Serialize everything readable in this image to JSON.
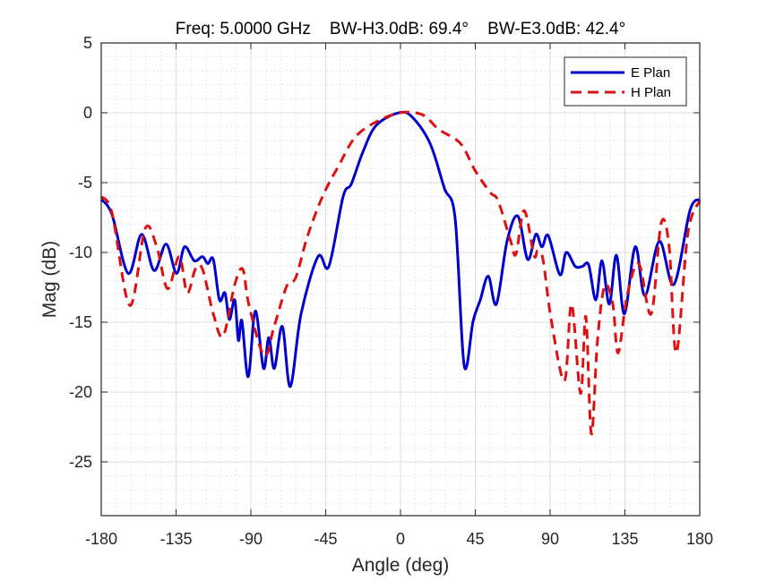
{
  "chart_data": {
    "type": "line",
    "title": "Freq: 5.0000 GHz    BW-H3.0dB: 69.4°    BW-E3.0dB: 42.4°",
    "xlabel": "Angle (deg)",
    "ylabel": "Mag (dB)",
    "xlim": [
      -180,
      180
    ],
    "ylim": [
      -28.85,
      5
    ],
    "xticks": [
      -180,
      -135,
      -90,
      -45,
      0,
      45,
      90,
      135,
      180
    ],
    "xtick_labels": [
      "-180",
      "-135",
      "-90",
      "-45",
      "0",
      "45",
      "90",
      "135",
      "180"
    ],
    "yticks": [
      5,
      0,
      -5,
      -10,
      -15,
      -20,
      -25
    ],
    "ytick_labels": [
      "5",
      "0",
      "-5",
      "-10",
      "-15",
      "-20",
      "-25"
    ],
    "grid": "major+minor",
    "legend_position": "top-right",
    "series": [
      {
        "name": "E Plan",
        "color": "#0000cc",
        "style": "solid",
        "x": [
          -180,
          -173.5,
          -163.8,
          -155.7,
          -148.2,
          -141,
          -134.7,
          -129.9,
          -124,
          -119.1,
          -115.9,
          -112.6,
          -108.9,
          -105.6,
          -102.9,
          -99.7,
          -97.5,
          -95.4,
          -91.6,
          -87.3,
          -82.4,
          -79.2,
          -75.9,
          -71.1,
          -66.3,
          -59.8,
          -49.6,
          -43.1,
          -34.5,
          -29.6,
          -22.6,
          -14.6,
          -1.1,
          7,
          17.8,
          26.4,
          32.9,
          38.3,
          43.7,
          48,
          52.8,
          57.7,
          64.1,
          70.6,
          76.5,
          81.4,
          85.1,
          88.9,
          95.9,
          99.7,
          105.1,
          109.4,
          113.2,
          117.5,
          121.2,
          125.6,
          129.9,
          134.7,
          141.2,
          147.1,
          155.7,
          164.4,
          174.1,
          180
        ],
        "y": [
          -6.2,
          -7.3,
          -11.5,
          -8.7,
          -11.3,
          -9.4,
          -11.5,
          -9.6,
          -10.6,
          -10.3,
          -10.8,
          -10.5,
          -13.4,
          -12.9,
          -14.8,
          -13.4,
          -16.3,
          -14.9,
          -18.9,
          -14.2,
          -18.3,
          -16.1,
          -18.3,
          -15.3,
          -19.6,
          -14.4,
          -10.3,
          -11.0,
          -6.0,
          -5.1,
          -2.8,
          -0.9,
          0,
          -0.3,
          -2.2,
          -5.4,
          -7.6,
          -18.1,
          -14.9,
          -13.4,
          -11.7,
          -13.7,
          -9.2,
          -7.4,
          -10.5,
          -8.7,
          -9.6,
          -8.8,
          -11.6,
          -10.0,
          -11.0,
          -11.0,
          -10.9,
          -13.4,
          -10.6,
          -13.7,
          -10.2,
          -14.4,
          -9.6,
          -13.1,
          -9.2,
          -12.3,
          -7.0,
          -6.2
        ]
      },
      {
        "name": "H Plan",
        "color": "#dd1111",
        "style": "dashed",
        "x": [
          -180,
          -173.5,
          -162.8,
          -153.6,
          -146.6,
          -140.1,
          -133.1,
          -128.3,
          -123.4,
          -119.1,
          -112.6,
          -106.7,
          -99.7,
          -94.9,
          -91.1,
          -82,
          -76,
          -68.4,
          -63,
          -56.1,
          -46.9,
          -37.2,
          -25.3,
          -3.8,
          12.4,
          23.2,
          36.1,
          44.7,
          53.9,
          58.7,
          66.3,
          69.5,
          74.4,
          80.3,
          82.4,
          85.7,
          90.5,
          98.6,
          102.9,
          108.3,
          111.5,
          114.8,
          118.5,
          122.8,
          127.7,
          130.9,
          136.3,
          143.3,
          150.8,
          156.8,
          161.6,
          165.9,
          172.9,
          180
        ],
        "y": [
          -6.0,
          -7.2,
          -13.8,
          -8.3,
          -9.6,
          -12.6,
          -10.3,
          -12.9,
          -11.2,
          -11.2,
          -14.4,
          -16.0,
          -12.3,
          -11.2,
          -13.8,
          -17.4,
          -15.3,
          -12.4,
          -11.8,
          -8.9,
          -6.0,
          -3.8,
          -1.5,
          -0.1,
          -0.1,
          -1.2,
          -2.2,
          -4.1,
          -5.7,
          -6.3,
          -9.2,
          -10.1,
          -7.0,
          -10.2,
          -9.9,
          -10.5,
          -14.7,
          -19.2,
          -13.7,
          -20.1,
          -14.6,
          -23.0,
          -16.3,
          -12.4,
          -13.7,
          -17.2,
          -13.1,
          -10.8,
          -14.4,
          -7.9,
          -9.6,
          -17.2,
          -8.6,
          -6.3
        ]
      }
    ]
  }
}
